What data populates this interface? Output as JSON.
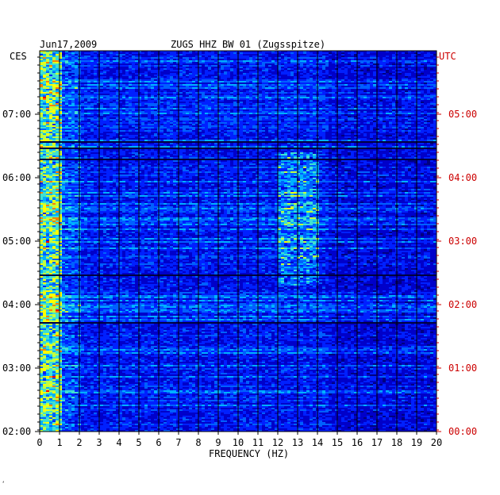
{
  "header": {
    "date": "Jun17,2009",
    "station": "ZUGS HHZ BW 01 (Zugsspitze)"
  },
  "left_axis": {
    "label": "CES",
    "ticks": [
      "07:00",
      "06:00",
      "05:00",
      "04:00",
      "03:00",
      "02:00"
    ]
  },
  "right_axis": {
    "label": "UTC",
    "ticks": [
      "05:00",
      "04:00",
      "03:00",
      "02:00",
      "01:00",
      "00:00"
    ]
  },
  "footer_mark": "‘",
  "chart_data": {
    "type": "heatmap",
    "title": "ZUGS HHZ BW 01 (Zugsspitze)",
    "xlabel": "FREQUENCY (HZ)",
    "x_ticks": [
      "0",
      "1",
      "2",
      "3",
      "4",
      "5",
      "6",
      "7",
      "8",
      "9",
      "10",
      "11",
      "12",
      "13",
      "14",
      "15",
      "16",
      "17",
      "18",
      "19",
      "20"
    ],
    "xlim": [
      0,
      20
    ],
    "time_range_utc": [
      "00:00",
      "06:00"
    ],
    "grid": true,
    "colormap": [
      "#000080",
      "#0000cc",
      "#0020ff",
      "#0060ff",
      "#00b0ff",
      "#40e0d0",
      "#c0ff40",
      "#ffff00",
      "#ff8000",
      "#ff0000"
    ],
    "background_color": "#0000c8",
    "grid_color": "#000000",
    "high_energy_bands_hz": [
      [
        0,
        1
      ],
      [
        12,
        14
      ]
    ]
  }
}
